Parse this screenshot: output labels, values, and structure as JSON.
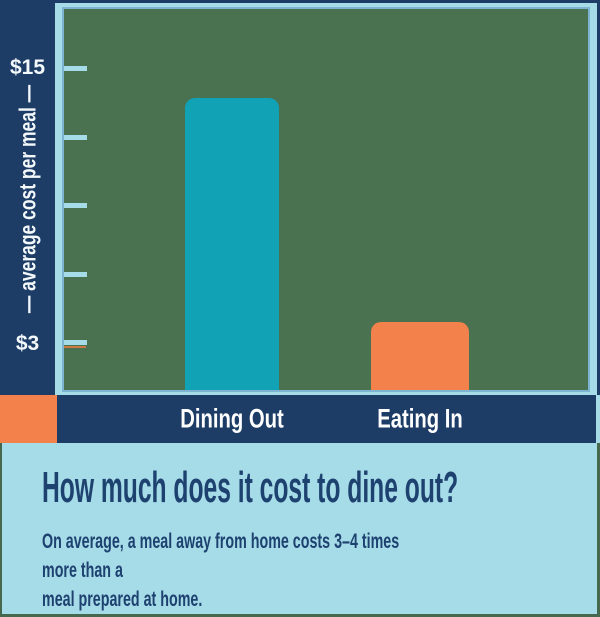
{
  "colors": {
    "navy": "#1d3c66",
    "light_blue": "#a6dbe8",
    "plot_green": "#4a7150",
    "steel_blue_line": "#7cb4d1",
    "dark_green_border": "#46694d",
    "bar_teal": "#12a2b5",
    "bar_orange": "#f2814c",
    "text_white": "#ffffff",
    "footer_text_navy": "#1e4270"
  },
  "y_axis": {
    "top_label": "$15",
    "bottom_label": "$3",
    "title": "— average cost per meal —"
  },
  "footer": {
    "title": "How much does it cost to dine out?",
    "subtitle": "On average, a meal away from home costs 3–4 times more than a\nmeal prepared at home."
  },
  "chart_data": {
    "type": "bar",
    "title": "How much does it cost to dine out?",
    "categories": [
      "Dining Out",
      "Eating In"
    ],
    "values": [
      13.7,
      3.9
    ],
    "bar_colors": [
      "#12a2b5",
      "#f2814c"
    ],
    "ylabel": "average cost per meal",
    "yticks": [
      3,
      6,
      9,
      12,
      15
    ],
    "ytick_labels_shown": [
      "$3",
      "$15"
    ],
    "ylim": [
      0.9,
      17.5
    ],
    "grid": false,
    "legend": false,
    "annotation": "On average, a meal away from home costs 3–4 times more than a meal prepared at home."
  }
}
